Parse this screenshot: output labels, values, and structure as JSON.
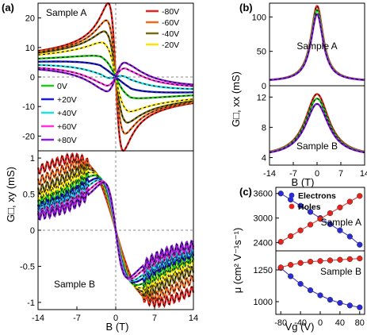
{
  "colors": {
    "-80V": "#e8231c",
    "-60V": "#f06a1c",
    "-40V": "#7a6a10",
    "-20V": "#ffe600",
    "0V": "#20c81c",
    "+20V": "#1c1cd0",
    "+40V": "#1ee0e8",
    "+60V": "#ff33dd",
    "+80V": "#8c1ce0",
    "fit": "#000000",
    "electrons": "#2a2ad8",
    "holes": "#e8231c"
  },
  "chart_data": [
    {
      "panel": "(a)",
      "type": "line",
      "ylabel": "G□, xy (mS)",
      "xlabel": "B (T)",
      "shared_ylabel": "G□, xy (mS)",
      "subplots": [
        {
          "name": "Sample A",
          "xlim": [
            -14,
            14
          ],
          "ylim": [
            -25,
            25
          ],
          "xticks": [],
          "yticks": [
            -20,
            -10,
            0,
            10,
            20
          ],
          "legend_groups": [
            {
              "placement": "top-right",
              "entries": [
                "-80V",
                "-60V",
                "-40V",
                "-20V"
              ]
            },
            {
              "placement": "lower-left",
              "entries": [
                "0V",
                "+20V",
                "+40V",
                "+60V",
                "+80V"
              ]
            }
          ],
          "series": [
            {
              "name": "-80V",
              "peak_B": 1.3,
              "peak_G": 24
            },
            {
              "name": "-60V",
              "peak_B": 1.6,
              "peak_G": 18
            },
            {
              "name": "-40V",
              "peak_B": 1.9,
              "peak_G": 14
            },
            {
              "name": "-20V",
              "peak_B": 2.2,
              "peak_G": 10
            },
            {
              "name": "0V",
              "peak_B": 2.6,
              "peak_G": 5
            },
            {
              "name": "+20V",
              "peak_B": 2.8,
              "peak_G": 2
            },
            {
              "name": "+40V",
              "peak_B": 2.6,
              "peak_G": -1
            },
            {
              "name": "+60V",
              "peak_B": 2.4,
              "peak_G": -4
            },
            {
              "name": "+80V",
              "peak_B": 2.2,
              "peak_G": -6
            }
          ]
        },
        {
          "name": "Sample B",
          "xlim": [
            -14,
            14
          ],
          "ylim": [
            -1.1,
            1.1
          ],
          "xticks": [
            -14,
            -7,
            0,
            7,
            14
          ],
          "yticks": [
            -1.0,
            -0.5,
            0.0,
            0.5,
            1.0
          ],
          "series": [
            {
              "name": "-80V",
              "peak_B": 7.5,
              "peak_G": 1.0
            },
            {
              "name": "-60V",
              "peak_B": 6.2,
              "peak_G": 0.92
            },
            {
              "name": "-40V",
              "peak_B": 5.2,
              "peak_G": 0.85
            },
            {
              "name": "-20V",
              "peak_B": 4.4,
              "peak_G": 0.8
            },
            {
              "name": "0V",
              "peak_B": 3.8,
              "peak_G": 0.76
            },
            {
              "name": "+20V",
              "peak_B": 3.3,
              "peak_G": 0.72
            },
            {
              "name": "+40V",
              "peak_B": 2.9,
              "peak_G": 0.7
            },
            {
              "name": "+60V",
              "peak_B": 2.5,
              "peak_G": 0.68
            },
            {
              "name": "+80V",
              "peak_B": 2.2,
              "peak_G": 0.66
            }
          ]
        }
      ]
    },
    {
      "panel": "(b)",
      "type": "line",
      "shared_ylabel": "G□, xx (mS)",
      "xlabel": "B (T)",
      "subplots": [
        {
          "name": "Sample A",
          "xlim": [
            -14,
            14
          ],
          "ylim": [
            0,
            120
          ],
          "yticks": [
            0,
            50,
            100
          ],
          "xticks": [],
          "series": [
            {
              "name": "-80V",
              "G0": 116,
              "Ginf": 6
            },
            {
              "name": "0V",
              "G0": 110,
              "Ginf": 6
            },
            {
              "name": "+80V",
              "G0": 104,
              "Ginf": 6
            }
          ]
        },
        {
          "name": "Sample B",
          "xlim": [
            -14,
            14
          ],
          "ylim": [
            3,
            13.5
          ],
          "yticks": [
            4,
            8,
            12
          ],
          "xticks": [
            -14,
            -7,
            0,
            7,
            14
          ],
          "series": [
            {
              "name": "-80V",
              "G0": 12.4,
              "Ginf": 4.1
            },
            {
              "name": "0V",
              "G0": 11.8,
              "Ginf": 4.1
            },
            {
              "name": "+80V",
              "G0": 11.1,
              "Ginf": 4.1
            }
          ]
        }
      ]
    },
    {
      "panel": "(c)",
      "type": "scatter",
      "shared_ylabel": "μ (cm² V⁻¹s⁻¹)",
      "xlabel": "Vg (V)",
      "legend": {
        "placement": "top-center",
        "entries": [
          "Electrons",
          "Holes"
        ]
      },
      "subplots": [
        {
          "name": "Sample A",
          "xlim": [
            -90,
            90
          ],
          "ylim": [
            2200,
            3750
          ],
          "yticks": [
            2400,
            3000,
            3600
          ],
          "xticks": [],
          "x": [
            -80,
            -60,
            -40,
            -20,
            0,
            20,
            40,
            60,
            80
          ],
          "series": [
            {
              "name": "Electrons",
              "values": [
                3600,
                3450,
                3300,
                3150,
                3000,
                2850,
                2700,
                2550,
                2350
              ]
            },
            {
              "name": "Holes",
              "values": [
                2420,
                2560,
                2700,
                2840,
                2980,
                3120,
                3260,
                3400,
                3540
              ]
            }
          ]
        },
        {
          "name": "Sample B",
          "xlim": [
            -90,
            90
          ],
          "ylim": [
            900,
            1400
          ],
          "yticks": [
            1000,
            1250
          ],
          "xticks": [
            -80,
            -40,
            0,
            40,
            80
          ],
          "x": [
            -80,
            -60,
            -40,
            -20,
            0,
            20,
            40,
            60,
            80
          ],
          "series": [
            {
              "name": "Electrons",
              "values": [
                1265,
                1200,
                1140,
                1090,
                1050,
                1015,
                990,
                970,
                955
              ]
            },
            {
              "name": "Holes",
              "values": [
                1270,
                1290,
                1305,
                1315,
                1320,
                1325,
                1330,
                1335,
                1340
              ]
            }
          ]
        }
      ]
    }
  ]
}
